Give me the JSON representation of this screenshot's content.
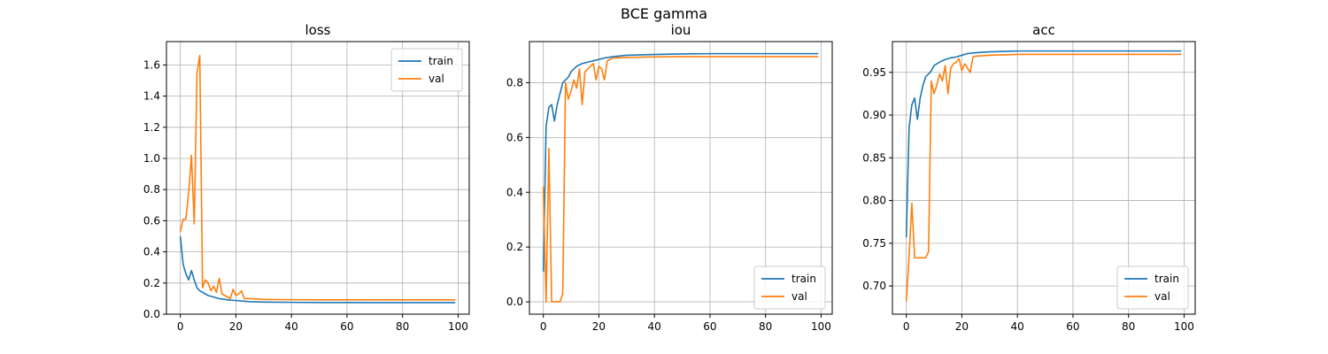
{
  "figure": {
    "suptitle": "BCE gamma"
  },
  "colors": {
    "train": "#1f77b4",
    "val": "#ff7f0e",
    "grid": "#b0b0b0"
  },
  "chart_data": [
    {
      "type": "line",
      "title": "loss",
      "xlabel": "",
      "ylabel": "",
      "xlim": [
        -5,
        104
      ],
      "ylim": [
        0,
        1.75
      ],
      "xticks": [
        0,
        20,
        40,
        60,
        80,
        100
      ],
      "yticks": [
        0.0,
        0.2,
        0.4,
        0.6,
        0.8,
        1.0,
        1.2,
        1.4,
        1.6
      ],
      "ytick_labels": [
        "0.0",
        "0.2",
        "0.4",
        "0.6",
        "0.8",
        "1.0",
        "1.2",
        "1.4",
        "1.6"
      ],
      "grid": true,
      "legend": "upper right",
      "series": [
        {
          "name": "train",
          "x": [
            0,
            1,
            2,
            3,
            4,
            5,
            6,
            7,
            8,
            9,
            10,
            12,
            14,
            16,
            18,
            20,
            22,
            25,
            30,
            40,
            50,
            60,
            70,
            80,
            90,
            99
          ],
          "y": [
            0.5,
            0.32,
            0.26,
            0.22,
            0.28,
            0.22,
            0.17,
            0.15,
            0.14,
            0.13,
            0.12,
            0.11,
            0.1,
            0.095,
            0.09,
            0.088,
            0.085,
            0.08,
            0.078,
            0.076,
            0.075,
            0.075,
            0.074,
            0.074,
            0.074,
            0.074
          ]
        },
        {
          "name": "val",
          "x": [
            0,
            1,
            2,
            3,
            4,
            5,
            6,
            7,
            8,
            9,
            10,
            11,
            12,
            13,
            14,
            15,
            16,
            18,
            19,
            20,
            21,
            22,
            23,
            24,
            25,
            30,
            40,
            50,
            60,
            70,
            80,
            90,
            99
          ],
          "y": [
            0.53,
            0.61,
            0.61,
            0.78,
            1.02,
            0.58,
            1.55,
            1.66,
            0.17,
            0.22,
            0.2,
            0.15,
            0.18,
            0.14,
            0.23,
            0.13,
            0.12,
            0.1,
            0.16,
            0.12,
            0.13,
            0.15,
            0.1,
            0.1,
            0.1,
            0.095,
            0.093,
            0.092,
            0.092,
            0.092,
            0.092,
            0.092,
            0.092
          ]
        }
      ]
    },
    {
      "type": "line",
      "title": "iou",
      "xlabel": "",
      "ylabel": "",
      "xlim": [
        -5,
        104
      ],
      "ylim": [
        -0.045,
        0.95
      ],
      "xticks": [
        0,
        20,
        40,
        60,
        80,
        100
      ],
      "yticks": [
        0.0,
        0.2,
        0.4,
        0.6,
        0.8
      ],
      "ytick_labels": [
        "0.0",
        "0.2",
        "0.4",
        "0.6",
        "0.8"
      ],
      "grid": true,
      "legend": "lower right",
      "series": [
        {
          "name": "train",
          "x": [
            0,
            1,
            2,
            3,
            4,
            5,
            6,
            7,
            8,
            9,
            10,
            12,
            14,
            16,
            18,
            20,
            22,
            25,
            30,
            40,
            50,
            60,
            70,
            80,
            90,
            99
          ],
          "y": [
            0.11,
            0.64,
            0.71,
            0.72,
            0.66,
            0.72,
            0.76,
            0.8,
            0.81,
            0.82,
            0.84,
            0.86,
            0.87,
            0.875,
            0.88,
            0.885,
            0.89,
            0.895,
            0.9,
            0.903,
            0.905,
            0.906,
            0.906,
            0.906,
            0.906,
            0.906
          ]
        },
        {
          "name": "val",
          "x": [
            0,
            1,
            2,
            3,
            4,
            5,
            6,
            7,
            8,
            9,
            10,
            11,
            12,
            13,
            14,
            15,
            16,
            17,
            18,
            19,
            20,
            21,
            22,
            23,
            24,
            25,
            30,
            40,
            50,
            60,
            70,
            80,
            90,
            99
          ],
          "y": [
            0.42,
            0.0,
            0.56,
            0.0,
            0.0,
            0.0,
            0.0,
            0.03,
            0.8,
            0.74,
            0.77,
            0.81,
            0.78,
            0.85,
            0.72,
            0.84,
            0.85,
            0.86,
            0.87,
            0.81,
            0.86,
            0.85,
            0.81,
            0.88,
            0.885,
            0.89,
            0.892,
            0.894,
            0.895,
            0.895,
            0.895,
            0.895,
            0.895,
            0.895
          ]
        }
      ]
    },
    {
      "type": "line",
      "title": "acc",
      "xlabel": "",
      "ylabel": "",
      "xlim": [
        -5,
        104
      ],
      "ylim": [
        0.667,
        0.986
      ],
      "xticks": [
        0,
        20,
        40,
        60,
        80,
        100
      ],
      "yticks": [
        0.7,
        0.75,
        0.8,
        0.85,
        0.9,
        0.95
      ],
      "ytick_labels": [
        "0.70",
        "0.75",
        "0.80",
        "0.85",
        "0.90",
        "0.95"
      ],
      "grid": true,
      "legend": "lower right",
      "series": [
        {
          "name": "train",
          "x": [
            0,
            1,
            2,
            3,
            4,
            5,
            6,
            7,
            8,
            9,
            10,
            12,
            14,
            16,
            18,
            20,
            22,
            25,
            30,
            40,
            50,
            60,
            70,
            80,
            90,
            99
          ],
          "y": [
            0.757,
            0.885,
            0.912,
            0.92,
            0.895,
            0.92,
            0.935,
            0.945,
            0.948,
            0.952,
            0.958,
            0.962,
            0.965,
            0.967,
            0.968,
            0.97,
            0.972,
            0.973,
            0.974,
            0.975,
            0.975,
            0.975,
            0.975,
            0.975,
            0.975,
            0.975
          ]
        },
        {
          "name": "val",
          "x": [
            0,
            1,
            2,
            3,
            4,
            5,
            6,
            7,
            8,
            9,
            10,
            11,
            12,
            13,
            14,
            15,
            16,
            17,
            18,
            19,
            20,
            21,
            22,
            23,
            24,
            25,
            30,
            40,
            50,
            60,
            70,
            80,
            90,
            99
          ],
          "y": [
            0.682,
            0.735,
            0.797,
            0.733,
            0.733,
            0.733,
            0.733,
            0.733,
            0.74,
            0.94,
            0.925,
            0.935,
            0.948,
            0.94,
            0.958,
            0.925,
            0.955,
            0.96,
            0.962,
            0.966,
            0.952,
            0.96,
            0.955,
            0.95,
            0.968,
            0.969,
            0.97,
            0.971,
            0.971,
            0.971,
            0.971,
            0.971,
            0.971,
            0.971
          ]
        }
      ]
    }
  ]
}
